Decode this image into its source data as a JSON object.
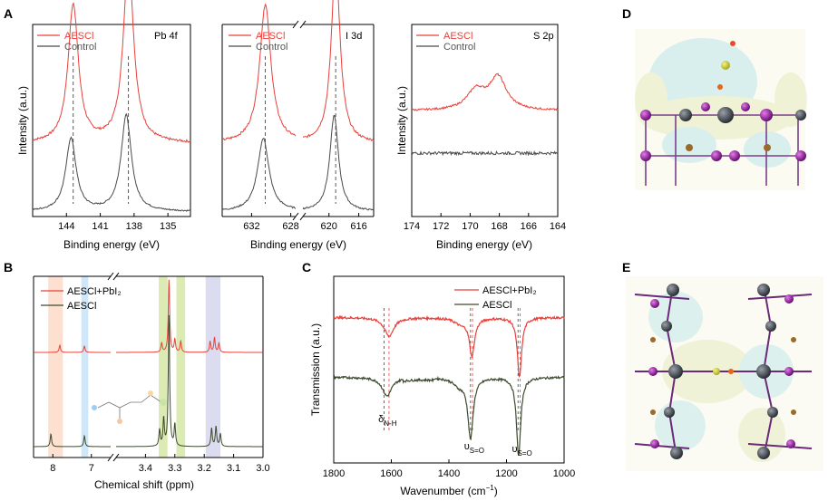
{
  "colors": {
    "aescl": "#e8403a",
    "control": "#4a4a4a",
    "complex": "#e8403a",
    "aescl_ftir": "#3e4a2e"
  },
  "panel_letters": {
    "A": "A",
    "B": "B",
    "C": "C",
    "D": "D",
    "E": "E"
  },
  "chart_data": [
    {
      "type": "line",
      "panel": "A",
      "title": "Pb 4f",
      "xlabel": "Binding energy (eV)",
      "ylabel": "Intensity (a.u.)",
      "xlim": [
        147,
        133
      ],
      "x_reversed": true,
      "xticks": [
        "144",
        "141",
        "138",
        "135"
      ],
      "xtick_values": [
        144,
        141,
        138,
        135
      ],
      "legend": [
        "AESCl",
        "Control"
      ],
      "series": [
        {
          "name": "AESCl",
          "peaks": [
            {
              "x": 143.4,
              "height": 0.72,
              "width": 0.55
            },
            {
              "x": 138.5,
              "height": 0.95,
              "width": 0.55
            }
          ],
          "baseline": 0.38,
          "noise": 0.006
        },
        {
          "name": "Control",
          "peaks": [
            {
              "x": 143.6,
              "height": 0.38,
              "width": 0.55
            },
            {
              "x": 138.7,
              "height": 0.5,
              "width": 0.55
            }
          ],
          "baseline": 0.025,
          "noise": 0.004
        }
      ],
      "markers": [
        143.4,
        138.5
      ]
    },
    {
      "type": "line",
      "panel": "A",
      "title": "I 3d",
      "xlabel": "Binding energy (eV)",
      "ylabel": "",
      "xlim": [
        635,
        614
      ],
      "x_reversed": true,
      "axis_break": [
        627.5,
        623.5
      ],
      "xticks": [
        "632",
        "628",
        "620",
        "616"
      ],
      "xtick_values": [
        632,
        628,
        620,
        616
      ],
      "legend": [
        "AESCl",
        "Control"
      ],
      "series": [
        {
          "name": "AESCl",
          "peaks": [
            {
              "x": 630.6,
              "height": 0.72,
              "width": 0.7
            },
            {
              "x": 619.1,
              "height": 0.95,
              "width": 0.7
            }
          ],
          "baseline": 0.38,
          "noise": 0.006
        },
        {
          "name": "Control",
          "peaks": [
            {
              "x": 630.8,
              "height": 0.38,
              "width": 0.7
            },
            {
              "x": 619.3,
              "height": 0.5,
              "width": 0.7
            }
          ],
          "baseline": 0.025,
          "noise": 0.004
        }
      ],
      "markers": [
        630.6,
        619.1
      ]
    },
    {
      "type": "line",
      "panel": "A",
      "title": "S 2p",
      "xlabel": "Binding energy (eV)",
      "ylabel": "",
      "xlim": [
        174,
        164
      ],
      "x_reversed": true,
      "xticks": [
        "174",
        "172",
        "170",
        "168",
        "166",
        "164"
      ],
      "xtick_values": [
        174,
        172,
        170,
        168,
        166,
        164
      ],
      "legend": [
        "AESCl",
        "Control"
      ],
      "series": [
        {
          "name": "AESCl",
          "peaks": [
            {
              "x": 169.6,
              "height": 0.1,
              "width": 0.75
            },
            {
              "x": 168.1,
              "height": 0.17,
              "width": 0.7
            }
          ],
          "baseline": 0.55,
          "noise": 0.005
        },
        {
          "name": "Control",
          "peaks": [],
          "baseline": 0.33,
          "noise": 0.008
        }
      ],
      "markers": []
    },
    {
      "type": "line",
      "panel": "B",
      "title": "",
      "xlabel": "Chemical shift (ppm)",
      "ylabel": "",
      "x_reversed": true,
      "axis_break": [
        6.5,
        3.5
      ],
      "segments": [
        {
          "range": [
            8.5,
            6.5
          ]
        },
        {
          "range": [
            3.5,
            3.0
          ]
        }
      ],
      "xticks": [
        "8",
        "7",
        "3.4",
        "3.3",
        "3.2",
        "3.1",
        "3.0"
      ],
      "xtick_values": [
        8,
        7,
        3.4,
        3.3,
        3.2,
        3.1,
        3.0
      ],
      "legend": [
        "AESCl+PbI₂",
        "AESCl"
      ],
      "highlight_bands": [
        {
          "range": [
            8.12,
            7.74
          ],
          "color": "#fde0cf"
        },
        {
          "range": [
            7.26,
            7.08
          ],
          "color": "#cfe7f8"
        },
        {
          "range": [
            3.355,
            3.325
          ],
          "color": "#dcebb4"
        },
        {
          "range": [
            3.295,
            3.265
          ],
          "color": "#dcebb4"
        },
        {
          "range": [
            3.195,
            3.145
          ],
          "color": "#dcdcf0"
        }
      ],
      "series": [
        {
          "name": "AESCl+PbI₂",
          "baseline": 0.58,
          "peaks": [
            {
              "x": 7.82,
              "h": 0.04
            },
            {
              "x": 7.18,
              "h": 0.035
            },
            {
              "x": 3.345,
              "h": 0.05
            },
            {
              "x": 3.32,
              "h": 0.4
            },
            {
              "x": 3.3,
              "h": 0.07
            },
            {
              "x": 3.28,
              "h": 0.06
            },
            {
              "x": 3.18,
              "h": 0.06
            },
            {
              "x": 3.165,
              "h": 0.08
            },
            {
              "x": 3.15,
              "h": 0.05
            }
          ]
        },
        {
          "name": "AESCl",
          "baseline": 0.06,
          "peaks": [
            {
              "x": 8.05,
              "h": 0.07
            },
            {
              "x": 7.18,
              "h": 0.06
            },
            {
              "x": 3.352,
              "h": 0.09
            },
            {
              "x": 3.338,
              "h": 0.15
            },
            {
              "x": 3.32,
              "h": 0.72
            },
            {
              "x": 3.3,
              "h": 0.12
            },
            {
              "x": 3.175,
              "h": 0.1
            },
            {
              "x": 3.16,
              "h": 0.11
            },
            {
              "x": 3.145,
              "h": 0.07
            }
          ]
        }
      ]
    },
    {
      "type": "line",
      "panel": "C",
      "title": "",
      "xlabel": "Wavenumber (cm⁻¹)",
      "ylabel": "Transmission (a.u.)",
      "xlim": [
        1800,
        1000
      ],
      "x_reversed": true,
      "xticks": [
        "1800",
        "1600",
        "1400",
        "1200",
        "1000"
      ],
      "xtick_values": [
        1800,
        1600,
        1400,
        1200,
        1000
      ],
      "legend": [
        "AESCl+PbI₂",
        "AESCl"
      ],
      "series": [
        {
          "name": "AESCl+PbI₂",
          "baseline": 0.78,
          "dips": [
            {
              "x": 1608,
              "d": 0.1,
              "w": 20
            },
            {
              "x": 1320,
              "d": 0.2,
              "w": 11
            },
            {
              "x": 1155,
              "d": 0.32,
              "w": 9
            },
            {
              "x": 1360,
              "d": 0.03,
              "w": 25
            }
          ]
        },
        {
          "name": "AESCl",
          "baseline": 0.46,
          "dips": [
            {
              "x": 1615,
              "d": 0.1,
              "w": 20
            },
            {
              "x": 1325,
              "d": 0.32,
              "w": 11
            },
            {
              "x": 1158,
              "d": 0.42,
              "w": 9
            },
            {
              "x": 1365,
              "d": 0.04,
              "w": 25
            }
          ]
        }
      ],
      "markers": [
        1625,
        1608,
        1325,
        1318,
        1160,
        1153
      ],
      "annotations": [
        {
          "label": "δ",
          "sub": "N-H",
          "x": 1620
        },
        {
          "label": "υ",
          "sub": "S=O",
          "x": 1322
        },
        {
          "label": "υ",
          "sub": "S=O",
          "x": 1156
        }
      ]
    }
  ]
}
